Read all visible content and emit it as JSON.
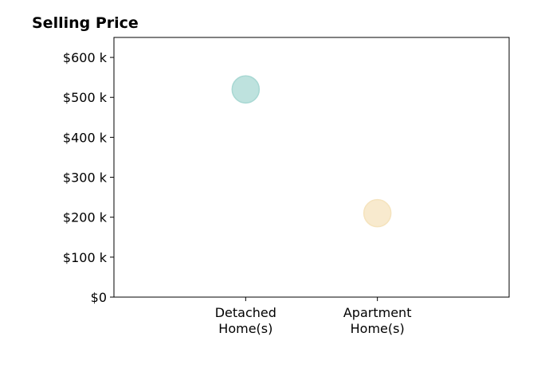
{
  "chart_data": {
    "type": "scatter",
    "title": "Selling Price",
    "xlabel": "",
    "ylabel": "",
    "categories": [
      {
        "line1": "Detached",
        "line2": "Home(s)"
      },
      {
        "line1": "Apartment",
        "line2": "Home(s)"
      }
    ],
    "x_range": [
      -1,
      2
    ],
    "ylim": [
      0,
      650000
    ],
    "y_ticks": [
      0,
      100000,
      200000,
      300000,
      400000,
      500000,
      600000
    ],
    "y_tick_labels": [
      "$0",
      "$100 k",
      "$200 k",
      "$300 k",
      "$400 k",
      "$500 k",
      "$600 k"
    ],
    "grid": false,
    "legend": "none",
    "points": [
      {
        "category_index": 0,
        "value": 520000,
        "color": "#a8d8d3"
      },
      {
        "category_index": 1,
        "value": 210000,
        "color": "#f5e3bd"
      }
    ]
  }
}
